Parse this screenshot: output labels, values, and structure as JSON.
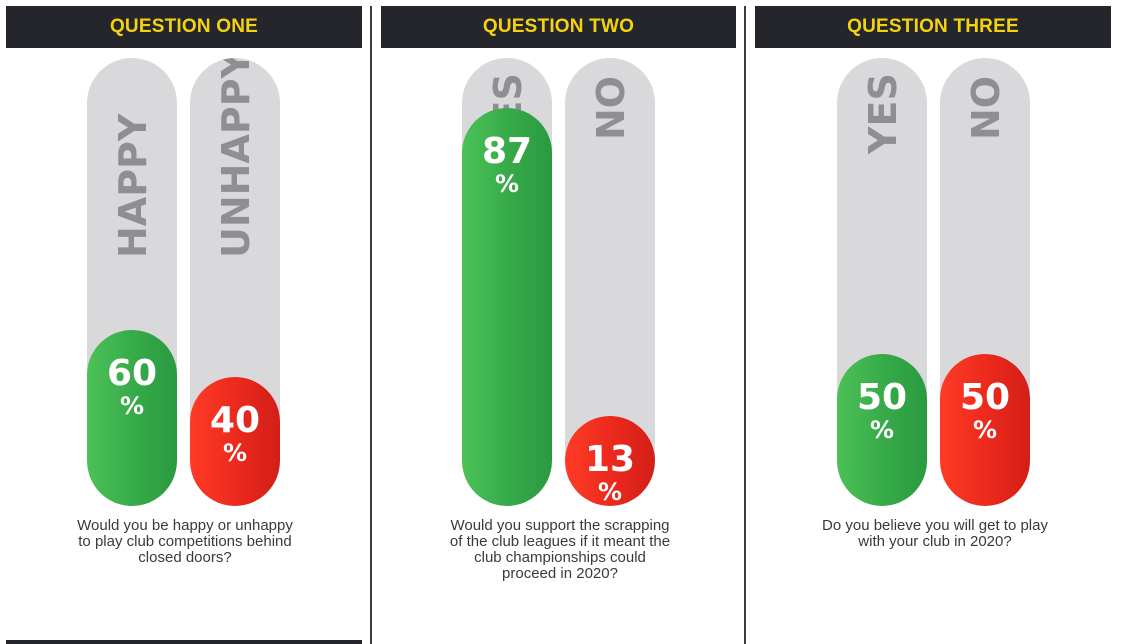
{
  "colors": {
    "header_bg": "#24262b",
    "header_text": "#f5d20f",
    "track": "#d9d9dc",
    "positive": "#36a948",
    "negative": "#e8271c",
    "label": "#8e8e93"
  },
  "chart_data": [
    {
      "type": "bar",
      "title": "QUESTION ONE",
      "categories": [
        "HAPPY",
        "UNHAPPY"
      ],
      "values": [
        60,
        40
      ],
      "unit": "%",
      "ylim": [
        0,
        100
      ],
      "question": "Would you be happy or unhappy to play club competitions behind closed doors?"
    },
    {
      "type": "bar",
      "title": "QUESTION TWO",
      "categories": [
        "YES",
        "NO"
      ],
      "values": [
        87,
        13
      ],
      "unit": "%",
      "ylim": [
        0,
        100
      ],
      "question": "Would you support the scrapping of the club leagues if it meant the club championships could proceed in 2020?"
    },
    {
      "type": "bar",
      "title": "QUESTION THREE",
      "categories": [
        "YES",
        "NO"
      ],
      "values": [
        50,
        50
      ],
      "unit": "%",
      "ylim": [
        0,
        100
      ],
      "question": "Do you believe you will get to play with your club in 2020?"
    }
  ]
}
